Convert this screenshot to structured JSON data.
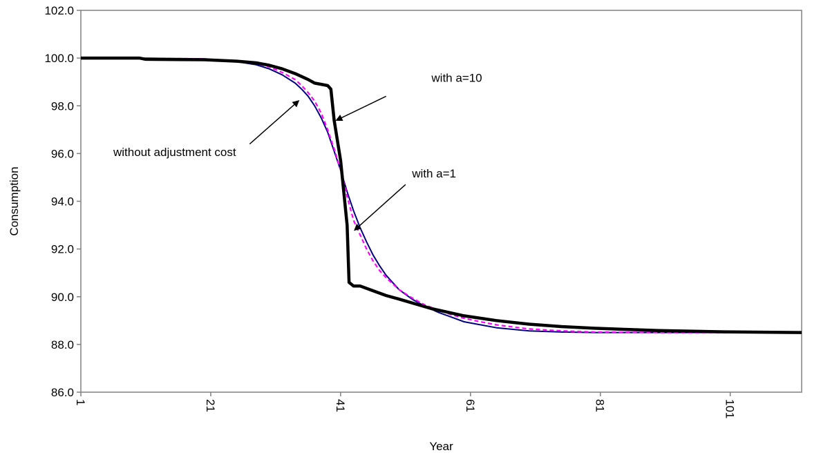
{
  "chart_data": {
    "type": "line",
    "xlabel": "Year",
    "ylabel": "Consumption",
    "xlim": [
      1,
      112
    ],
    "ylim": [
      86.0,
      102.0
    ],
    "y_ticks": [
      "86.0",
      "88.0",
      "90.0",
      "92.0",
      "94.0",
      "96.0",
      "98.0",
      "100.0",
      "102.0"
    ],
    "x_ticks": [
      "1",
      "21",
      "41",
      "61",
      "81",
      "101"
    ],
    "grid": false,
    "legend": "none",
    "series": [
      {
        "color": "#000080",
        "style": "solid-thin",
        "x": [
          1,
          10,
          20,
          25,
          28,
          30,
          32,
          34,
          35,
          36,
          37,
          38,
          39,
          40,
          41,
          42,
          43,
          44,
          45,
          46,
          47,
          48,
          50,
          52,
          54,
          56,
          58,
          60,
          62,
          65,
          70,
          75,
          80,
          90,
          100,
          112
        ],
        "values": [
          100.0,
          100.0,
          99.97,
          99.85,
          99.72,
          99.55,
          99.3,
          98.95,
          98.7,
          98.4,
          98.0,
          97.5,
          96.9,
          96.1,
          95.3,
          94.4,
          93.6,
          92.9,
          92.3,
          91.75,
          91.3,
          90.9,
          90.3,
          89.9,
          89.6,
          89.35,
          89.15,
          88.95,
          88.85,
          88.7,
          88.57,
          88.52,
          88.5,
          88.5,
          88.5,
          88.5
        ]
      },
      {
        "color": "#ff00ff",
        "style": "dashed",
        "x": [
          1,
          10,
          20,
          25,
          28,
          30,
          32,
          34,
          35,
          36,
          37,
          38,
          39,
          40,
          41,
          41.5,
          42,
          43,
          44,
          45,
          46,
          47,
          48,
          50,
          52,
          54,
          56,
          58,
          60,
          62,
          65,
          70,
          75,
          80,
          90,
          100,
          112
        ],
        "values": [
          100.0,
          100.0,
          99.97,
          99.88,
          99.78,
          99.63,
          99.4,
          99.1,
          98.85,
          98.55,
          98.2,
          97.7,
          97.0,
          96.2,
          95.3,
          94.8,
          94.2,
          93.2,
          92.6,
          92.0,
          91.5,
          91.1,
          90.8,
          90.3,
          89.95,
          89.65,
          89.45,
          89.25,
          89.1,
          88.98,
          88.82,
          88.65,
          88.57,
          88.52,
          88.5,
          88.5,
          88.5
        ]
      },
      {
        "color": "#000000",
        "style": "solid-thick",
        "x": [
          1,
          10,
          11,
          20,
          25,
          28,
          30,
          32,
          34,
          36,
          37,
          38,
          39,
          39.5,
          40,
          41,
          42,
          42.3,
          43,
          44,
          46,
          48,
          50,
          55,
          60,
          65,
          70,
          75,
          80,
          90,
          100,
          112
        ],
        "values": [
          100.0,
          100.0,
          99.95,
          99.93,
          99.87,
          99.8,
          99.7,
          99.55,
          99.35,
          99.1,
          98.95,
          98.9,
          98.85,
          98.7,
          97.4,
          95.7,
          93.0,
          90.6,
          90.45,
          90.45,
          90.25,
          90.05,
          89.9,
          89.5,
          89.2,
          89.0,
          88.85,
          88.75,
          88.68,
          88.58,
          88.53,
          88.5
        ]
      }
    ],
    "annotations": [
      {
        "text": "with a=10",
        "tx": 55,
        "ty": 99.0,
        "ax0": 48,
        "ay0": 98.4,
        "ax1": 40.4,
        "ay1": 97.4
      },
      {
        "text": "without adjustment cost",
        "tx": 6,
        "ty": 95.9,
        "ax0": 27,
        "ay0": 96.4,
        "ax1": 34.5,
        "ay1": 98.2
      },
      {
        "text": "with a=1",
        "tx": 52,
        "ty": 95.0,
        "ax0": 51,
        "ay0": 94.7,
        "ax1": 43.2,
        "ay1": 92.8
      }
    ]
  }
}
